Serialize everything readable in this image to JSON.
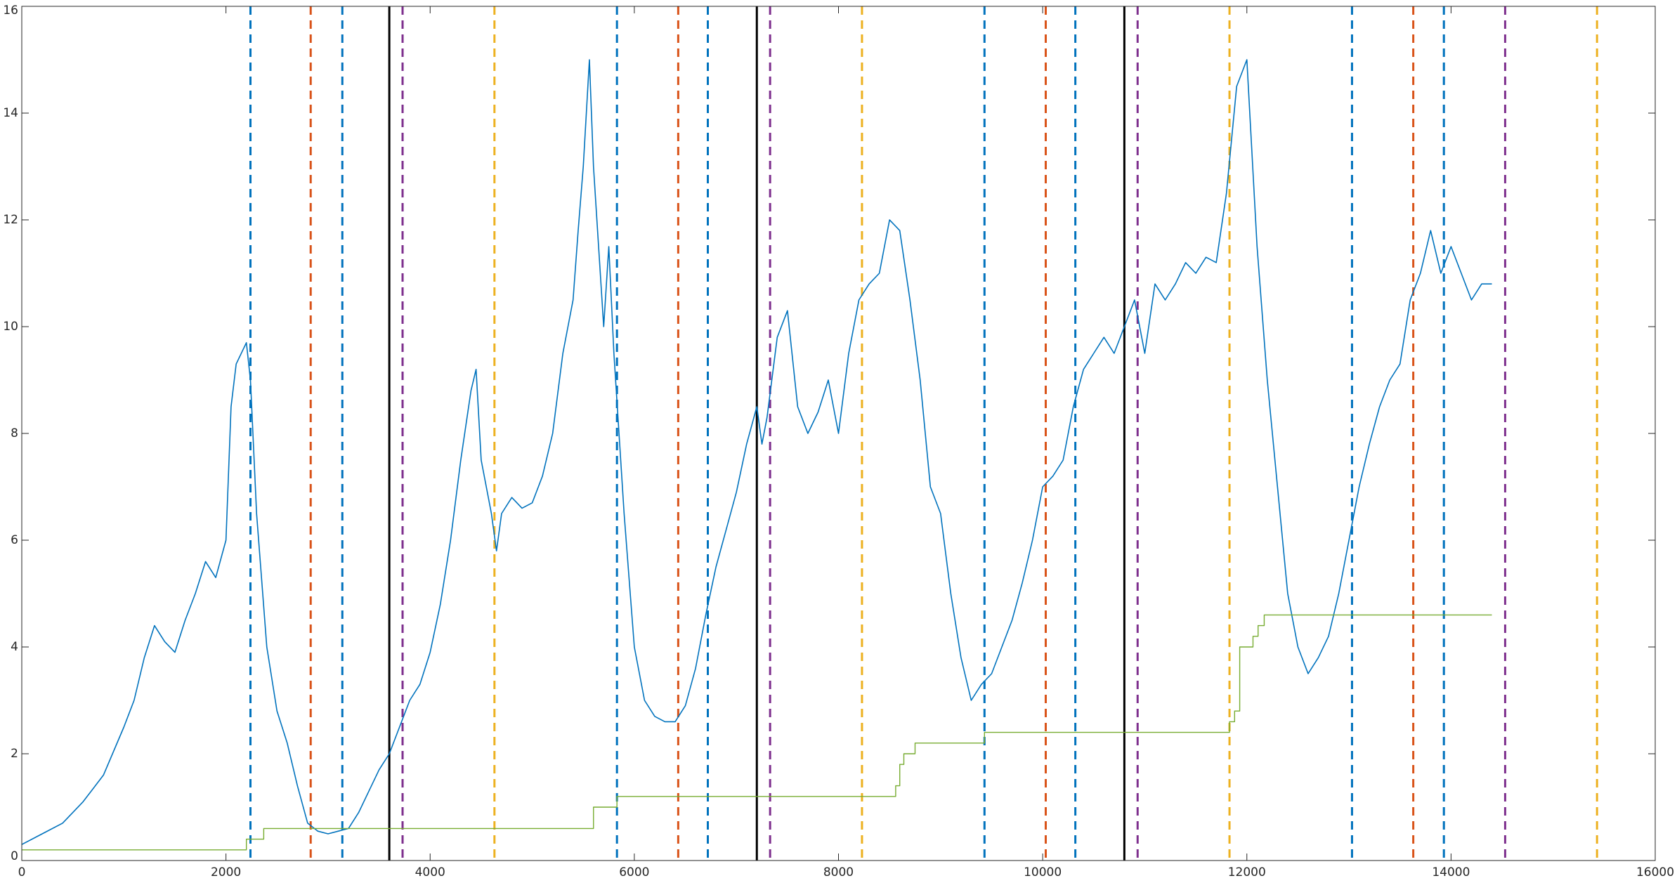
{
  "chart_data": {
    "type": "line",
    "xlim": [
      0,
      16000
    ],
    "xticks": [
      0,
      2000,
      4000,
      6000,
      8000,
      10000,
      12000,
      14000,
      16000
    ],
    "ylim": [
      0,
      16
    ],
    "yticks": [
      0,
      2,
      4,
      6,
      8,
      10,
      12,
      14,
      16
    ],
    "series": [
      {
        "color": "#0072bd",
        "x": [
          0,
          200,
          400,
          600,
          800,
          1000,
          1100,
          1200,
          1300,
          1400,
          1500,
          1600,
          1700,
          1800,
          1900,
          2000,
          2050,
          2100,
          2200,
          2240,
          2300,
          2400,
          2500,
          2600,
          2700,
          2800,
          2900,
          3000,
          3100,
          3200,
          3300,
          3400,
          3500,
          3600,
          3700,
          3800,
          3900,
          4000,
          4100,
          4200,
          4300,
          4400,
          4450,
          4500,
          4600,
          4650,
          4700,
          4800,
          4900,
          5000,
          5100,
          5200,
          5300,
          5400,
          5450,
          5500,
          5560,
          5600,
          5700,
          5750,
          5800,
          5900,
          6000,
          6100,
          6200,
          6300,
          6400,
          6500,
          6600,
          6700,
          6800,
          6900,
          7000,
          7100,
          7200,
          7250,
          7300,
          7400,
          7500,
          7600,
          7700,
          7800,
          7900,
          8000,
          8100,
          8200,
          8300,
          8400,
          8500,
          8600,
          8700,
          8800,
          8900,
          9000,
          9100,
          9200,
          9300,
          9400,
          9500,
          9600,
          9700,
          9800,
          9900,
          10000,
          10100,
          10200,
          10300,
          10400,
          10500,
          10600,
          10700,
          10800,
          10900,
          11000,
          11100,
          11200,
          11300,
          11400,
          11500,
          11600,
          11700,
          11800,
          11900,
          12000,
          12100,
          12200,
          12300,
          12400,
          12500,
          12600,
          12700,
          12800,
          12900,
          13000,
          13100,
          13200,
          13300,
          13400,
          13500,
          13600,
          13700,
          13800,
          13900,
          14000,
          14100,
          14200,
          14300,
          14400
        ],
        "values": [
          0.3,
          0.5,
          0.7,
          1.1,
          1.6,
          2.5,
          3.0,
          3.8,
          4.4,
          4.1,
          3.9,
          4.5,
          5.0,
          5.6,
          5.3,
          6.0,
          8.5,
          9.3,
          9.7,
          9.0,
          6.5,
          4.0,
          2.8,
          2.2,
          1.4,
          0.7,
          0.55,
          0.5,
          0.55,
          0.6,
          0.9,
          1.3,
          1.7,
          2.0,
          2.5,
          3.0,
          3.3,
          3.9,
          4.8,
          6.0,
          7.5,
          8.8,
          9.2,
          7.5,
          6.5,
          5.8,
          6.5,
          6.8,
          6.6,
          6.7,
          7.2,
          8.0,
          9.5,
          10.5,
          11.8,
          13.0,
          15.0,
          13.0,
          10.0,
          11.5,
          9.5,
          6.5,
          4.0,
          3.0,
          2.7,
          2.6,
          2.6,
          2.9,
          3.6,
          4.6,
          5.5,
          6.2,
          6.9,
          7.8,
          8.5,
          7.8,
          8.3,
          9.8,
          10.3,
          8.5,
          8.0,
          8.4,
          9.0,
          8.0,
          9.5,
          10.5,
          10.8,
          11.0,
          12.0,
          11.8,
          10.5,
          9.0,
          7.0,
          6.5,
          5.0,
          3.8,
          3.0,
          3.3,
          3.5,
          4.0,
          4.5,
          5.2,
          6.0,
          7.0,
          7.2,
          7.5,
          8.5,
          9.2,
          9.5,
          9.8,
          9.5,
          10.0,
          10.5,
          9.5,
          10.8,
          10.5,
          10.8,
          11.2,
          11.0,
          11.3,
          11.2,
          12.5,
          14.5,
          15.0,
          11.5,
          9.0,
          7.0,
          5.0,
          4.0,
          3.5,
          3.8,
          4.2,
          5.0,
          6.0,
          7.0,
          7.8,
          8.5,
          9.0,
          9.3,
          10.5,
          11.0,
          11.8,
          11.0,
          11.5,
          11.0,
          10.5,
          10.8,
          10.8
        ]
      },
      {
        "color": "#77ac30",
        "x": [
          0,
          2200,
          2200,
          2370,
          2370,
          5600,
          5600,
          5830,
          5830,
          8560,
          8560,
          8600,
          8600,
          8640,
          8640,
          8750,
          8750,
          9430,
          9430,
          11830,
          11830,
          11880,
          11880,
          11930,
          11930,
          12060,
          12060,
          12110,
          12110,
          12170,
          12170,
          14400
        ],
        "values": [
          0.2,
          0.2,
          0.4,
          0.4,
          0.6,
          0.6,
          1.0,
          1.0,
          1.2,
          1.2,
          1.4,
          1.4,
          1.8,
          1.8,
          2.0,
          2.0,
          2.2,
          2.2,
          2.4,
          2.4,
          2.6,
          2.6,
          2.8,
          2.8,
          4.0,
          4.0,
          4.2,
          4.2,
          4.4,
          4.4,
          4.6,
          4.6
        ]
      }
    ],
    "vlines": [
      {
        "x": 2240,
        "color": "#0072bd",
        "style": "dashed"
      },
      {
        "x": 2830,
        "color": "#d95319",
        "style": "dashed"
      },
      {
        "x": 3140,
        "color": "#0072bd",
        "style": "dashed"
      },
      {
        "x": 3600,
        "color": "#000000",
        "style": "solid"
      },
      {
        "x": 3730,
        "color": "#7e2f8e",
        "style": "dashed"
      },
      {
        "x": 4630,
        "color": "#edb120",
        "style": "dashed"
      },
      {
        "x": 5830,
        "color": "#0072bd",
        "style": "dashed"
      },
      {
        "x": 6430,
        "color": "#d95319",
        "style": "dashed"
      },
      {
        "x": 6720,
        "color": "#0072bd",
        "style": "dashed"
      },
      {
        "x": 7200,
        "color": "#000000",
        "style": "solid"
      },
      {
        "x": 7330,
        "color": "#7e2f8e",
        "style": "dashed"
      },
      {
        "x": 8230,
        "color": "#edb120",
        "style": "dashed"
      },
      {
        "x": 9430,
        "color": "#0072bd",
        "style": "dashed"
      },
      {
        "x": 10030,
        "color": "#d95319",
        "style": "dashed"
      },
      {
        "x": 10320,
        "color": "#0072bd",
        "style": "dashed"
      },
      {
        "x": 10800,
        "color": "#000000",
        "style": "solid"
      },
      {
        "x": 10930,
        "color": "#7e2f8e",
        "style": "dashed"
      },
      {
        "x": 11830,
        "color": "#edb120",
        "style": "dashed"
      },
      {
        "x": 13030,
        "color": "#0072bd",
        "style": "dashed"
      },
      {
        "x": 13630,
        "color": "#d95319",
        "style": "dashed"
      },
      {
        "x": 13930,
        "color": "#0072bd",
        "style": "dashed"
      },
      {
        "x": 14530,
        "color": "#7e2f8e",
        "style": "dashed"
      },
      {
        "x": 15430,
        "color": "#edb120",
        "style": "dashed"
      }
    ]
  }
}
